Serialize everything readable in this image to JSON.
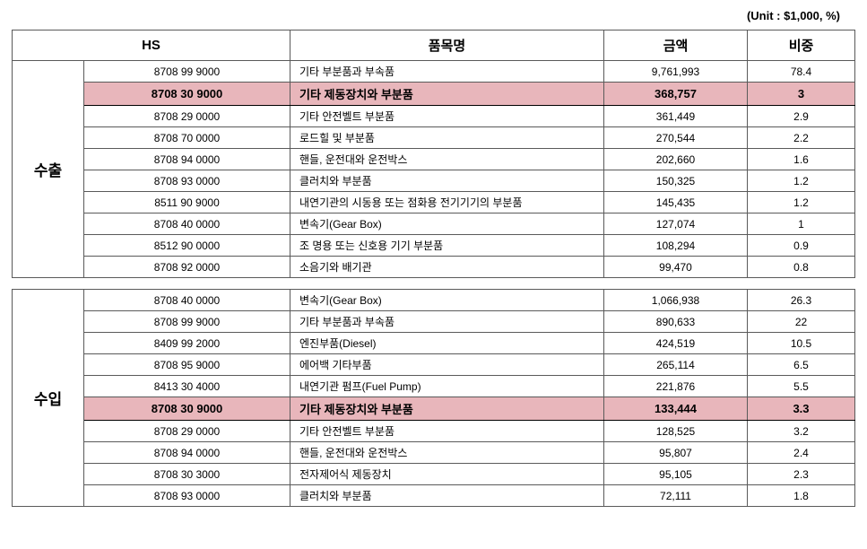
{
  "unit_label": "(Unit : $1,000, %)",
  "headers": {
    "hs": "HS",
    "item": "품목명",
    "amount": "금액",
    "pct": "비중"
  },
  "tables": [
    {
      "category": "수출",
      "rows": [
        {
          "hs": "8708 99 9000",
          "item": "기타 부분품과 부속품",
          "amount": "9,761,993",
          "pct": "78.4",
          "highlight": false
        },
        {
          "hs": "8708 30 9000",
          "item": "기타 제동장치와 부분품",
          "amount": "368,757",
          "pct": "3",
          "highlight": true
        },
        {
          "hs": "8708 29 0000",
          "item": "기타 안전벨트 부분품",
          "amount": "361,449",
          "pct": "2.9",
          "highlight": false
        },
        {
          "hs": "8708 70 0000",
          "item": "로드힐 및 부분품",
          "amount": "270,544",
          "pct": "2.2",
          "highlight": false
        },
        {
          "hs": "8708 94 0000",
          "item": "핸들, 운전대와 운전박스",
          "amount": "202,660",
          "pct": "1.6",
          "highlight": false
        },
        {
          "hs": "8708 93 0000",
          "item": "클러치와 부분품",
          "amount": "150,325",
          "pct": "1.2",
          "highlight": false
        },
        {
          "hs": "8511 90 9000",
          "item": "내연기관의 시동용 또는 점화용 전기기기의 부분품",
          "amount": "145,435",
          "pct": "1.2",
          "highlight": false
        },
        {
          "hs": "8708 40 0000",
          "item": "변속기(Gear Box)",
          "amount": "127,074",
          "pct": "1",
          "highlight": false
        },
        {
          "hs": "8512 90 0000",
          "item": "조 명용 또는 신호용 기기 부분품",
          "amount": "108,294",
          "pct": "0.9",
          "highlight": false
        },
        {
          "hs": "8708 92 0000",
          "item": "소음기와 배기관",
          "amount": "99,470",
          "pct": "0.8",
          "highlight": false
        }
      ]
    },
    {
      "category": "수입",
      "rows": [
        {
          "hs": "8708 40 0000",
          "item": "변속기(Gear Box)",
          "amount": "1,066,938",
          "pct": "26.3",
          "highlight": false
        },
        {
          "hs": "8708 99 9000",
          "item": "기타 부분품과 부속품",
          "amount": "890,633",
          "pct": "22",
          "highlight": false
        },
        {
          "hs": "8409 99 2000",
          "item": "엔진부품(Diesel)",
          "amount": "424,519",
          "pct": "10.5",
          "highlight": false
        },
        {
          "hs": "8708 95 9000",
          "item": "에어백 기타부품",
          "amount": "265,114",
          "pct": "6.5",
          "highlight": false
        },
        {
          "hs": "8413 30 4000",
          "item": "내연기관 펌프(Fuel Pump)",
          "amount": "221,876",
          "pct": "5.5",
          "highlight": false
        },
        {
          "hs": "8708 30 9000",
          "item": "기타 제동장치와 부분품",
          "amount": "133,444",
          "pct": "3.3",
          "highlight": true
        },
        {
          "hs": "8708 29 0000",
          "item": "기타 안전벨트 부분품",
          "amount": "128,525",
          "pct": "3.2",
          "highlight": false
        },
        {
          "hs": "8708 94 0000",
          "item": "핸들, 운전대와 운전박스",
          "amount": "95,807",
          "pct": "2.4",
          "highlight": false
        },
        {
          "hs": "8708 30 3000",
          "item": "전자제어식 제동장치",
          "amount": "95,105",
          "pct": "2.3",
          "highlight": false
        },
        {
          "hs": "8708 93 0000",
          "item": "클러치와 부분품",
          "amount": "72,111",
          "pct": "1.8",
          "highlight": false
        }
      ]
    }
  ]
}
